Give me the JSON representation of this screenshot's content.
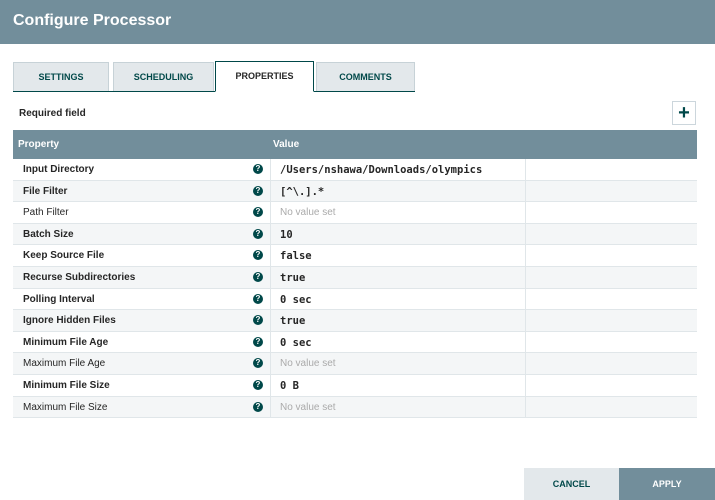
{
  "dialog": {
    "title": "Configure Processor"
  },
  "tabs": [
    {
      "label": "SETTINGS"
    },
    {
      "label": "SCHEDULING"
    },
    {
      "label": "PROPERTIES",
      "active": true
    },
    {
      "label": "COMMENTS"
    }
  ],
  "required_field_label": "Required field",
  "add_property_icon": "plus-icon",
  "table": {
    "headers": {
      "property": "Property",
      "value": "Value"
    },
    "rows": [
      {
        "name": "Input Directory",
        "required": true,
        "value": "/Users/nshawa/Downloads/olympics"
      },
      {
        "name": "File Filter",
        "required": true,
        "value": "[^\\.].*"
      },
      {
        "name": "Path Filter",
        "required": false,
        "value": "No value set",
        "empty": true
      },
      {
        "name": "Batch Size",
        "required": true,
        "value": "10"
      },
      {
        "name": "Keep Source File",
        "required": true,
        "value": "false"
      },
      {
        "name": "Recurse Subdirectories",
        "required": true,
        "value": "true"
      },
      {
        "name": "Polling Interval",
        "required": true,
        "value": "0 sec"
      },
      {
        "name": "Ignore Hidden Files",
        "required": true,
        "value": "true"
      },
      {
        "name": "Minimum File Age",
        "required": true,
        "value": "0 sec"
      },
      {
        "name": "Maximum File Age",
        "required": false,
        "value": "No value set",
        "empty": true
      },
      {
        "name": "Minimum File Size",
        "required": true,
        "value": "0 B"
      },
      {
        "name": "Maximum File Size",
        "required": false,
        "value": "No value set",
        "empty": true
      }
    ]
  },
  "footer": {
    "cancel": "CANCEL",
    "apply": "APPLY"
  },
  "colors": {
    "header": "#728e9b",
    "accent": "#004849",
    "cancel_bg": "#e3e8eb"
  }
}
